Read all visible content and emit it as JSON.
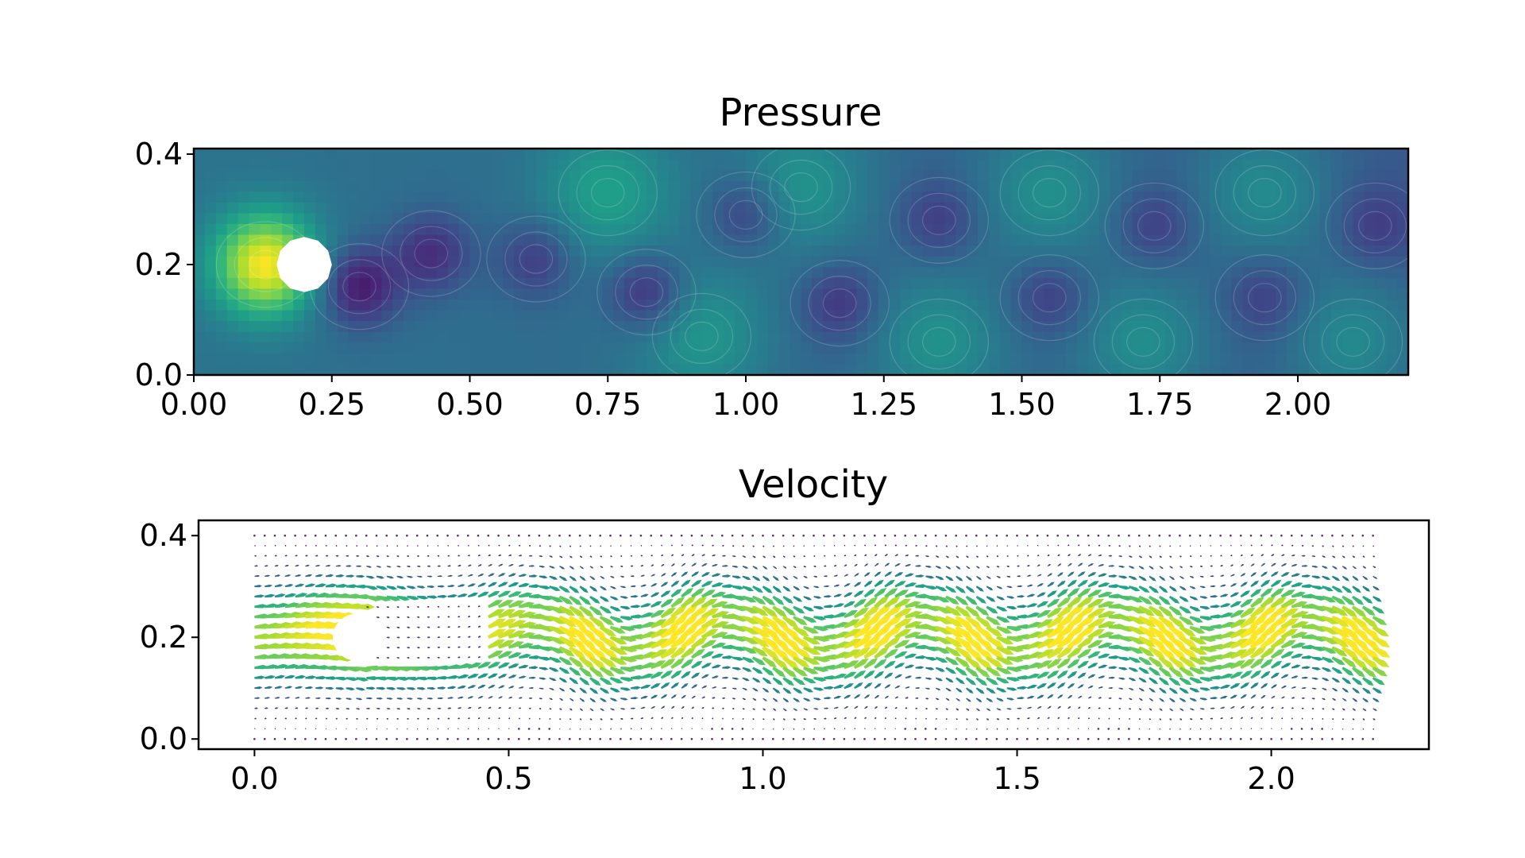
{
  "chart_data": [
    {
      "type": "heatmap",
      "title": "Pressure",
      "xlim": [
        0.0,
        2.2
      ],
      "ylim": [
        0.0,
        0.41
      ],
      "xticks": [
        "0.00",
        "0.25",
        "0.50",
        "0.75",
        "1.00",
        "1.25",
        "1.50",
        "1.75",
        "2.00"
      ],
      "xtick_values": [
        0.0,
        0.25,
        0.5,
        0.75,
        1.0,
        1.25,
        1.5,
        1.75,
        2.0
      ],
      "yticks": [
        "0.0",
        "0.2",
        "0.4"
      ],
      "ytick_values": [
        0.0,
        0.2,
        0.4
      ],
      "colormap": "viridis",
      "background_color": "#33638d",
      "obstacle": {
        "shape": "circle",
        "center": [
          0.2,
          0.2
        ],
        "radius": 0.05
      },
      "features": [
        {
          "kind": "high",
          "x": 0.13,
          "y": 0.2,
          "strength": 1.0
        },
        {
          "kind": "low",
          "x": 0.3,
          "y": 0.16,
          "strength": 1.0
        },
        {
          "kind": "low",
          "x": 0.43,
          "y": 0.22,
          "strength": 0.75
        },
        {
          "kind": "low",
          "x": 0.62,
          "y": 0.21,
          "strength": 0.6
        },
        {
          "kind": "low",
          "x": 0.82,
          "y": 0.15,
          "strength": 0.8
        },
        {
          "kind": "low",
          "x": 1.0,
          "y": 0.29,
          "strength": 0.6
        },
        {
          "kind": "low",
          "x": 1.17,
          "y": 0.13,
          "strength": 0.6
        },
        {
          "kind": "low",
          "x": 1.35,
          "y": 0.28,
          "strength": 0.5
        },
        {
          "kind": "low",
          "x": 1.55,
          "y": 0.14,
          "strength": 0.5
        },
        {
          "kind": "low",
          "x": 1.74,
          "y": 0.27,
          "strength": 0.45
        },
        {
          "kind": "low",
          "x": 1.94,
          "y": 0.14,
          "strength": 0.45
        },
        {
          "kind": "low",
          "x": 2.14,
          "y": 0.27,
          "strength": 0.4
        },
        {
          "kind": "high",
          "x": 0.75,
          "y": 0.33,
          "strength": 0.35
        },
        {
          "kind": "high",
          "x": 0.92,
          "y": 0.07,
          "strength": 0.3
        },
        {
          "kind": "high",
          "x": 1.1,
          "y": 0.34,
          "strength": 0.3
        },
        {
          "kind": "high",
          "x": 1.35,
          "y": 0.06,
          "strength": 0.3
        },
        {
          "kind": "high",
          "x": 1.55,
          "y": 0.33,
          "strength": 0.3
        },
        {
          "kind": "high",
          "x": 1.72,
          "y": 0.06,
          "strength": 0.3
        },
        {
          "kind": "high",
          "x": 1.94,
          "y": 0.33,
          "strength": 0.3
        },
        {
          "kind": "high",
          "x": 2.1,
          "y": 0.06,
          "strength": 0.3
        }
      ]
    },
    {
      "type": "quiver",
      "title": "Velocity",
      "xlim": [
        -0.11,
        2.31
      ],
      "ylim": [
        -0.02,
        0.43
      ],
      "xticks": [
        "0.0",
        "0.5",
        "1.0",
        "1.5",
        "2.0"
      ],
      "xtick_values": [
        0.0,
        0.5,
        1.0,
        1.5,
        2.0
      ],
      "yticks": [
        "0.0",
        "0.2",
        "0.4"
      ],
      "ytick_values": [
        0.0,
        0.2,
        0.4
      ],
      "colormap": "viridis",
      "domain": {
        "x": [
          0.0,
          2.2
        ],
        "y": [
          0.0,
          0.41
        ]
      },
      "obstacle": {
        "shape": "circle",
        "center": [
          0.2,
          0.2
        ],
        "radius": 0.05
      },
      "grid_spacing": [
        0.02,
        0.02
      ],
      "max_speed": 2.0,
      "wake": {
        "start_x": 0.45,
        "wavelength": 0.38,
        "amplitude": 0.045,
        "core_width": 0.09
      }
    }
  ],
  "colormap_stops": [
    "#440154",
    "#482878",
    "#3e4989",
    "#31688e",
    "#26828e",
    "#1f9e89",
    "#35b779",
    "#6ece58",
    "#b5de2b",
    "#fde725"
  ]
}
